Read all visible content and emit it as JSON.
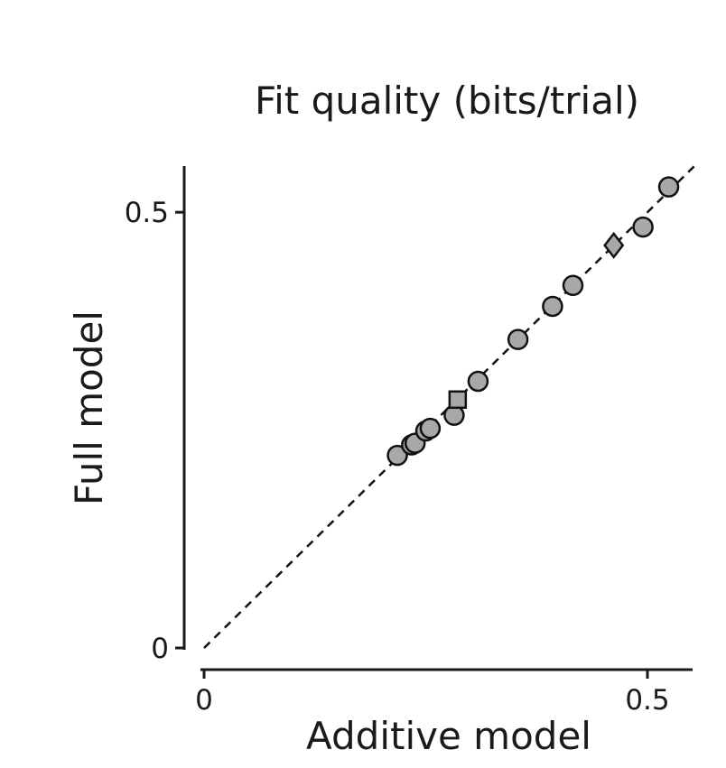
{
  "chart_data": {
    "type": "scatter",
    "title": "Fit quality (bits/trial)",
    "xlabel": "Additive model",
    "ylabel": "Full model",
    "xlim": [
      0,
      0.555
    ],
    "ylim": [
      0,
      0.553
    ],
    "x_ticks": [
      0,
      0.5
    ],
    "y_ticks": [
      0,
      0.5
    ],
    "x_tick_labels": [
      "0",
      "0.5"
    ],
    "y_tick_labels": [
      "0",
      "0.5"
    ],
    "grid": false,
    "reference_line": {
      "type": "identity",
      "style": "dashed",
      "label": ""
    },
    "marker_fill": "#a8a8a8",
    "marker_edge": "#111111",
    "series": [
      {
        "name": "circles",
        "marker": "circle",
        "points": [
          {
            "x": 0.218,
            "y": 0.221
          },
          {
            "x": 0.234,
            "y": 0.233
          },
          {
            "x": 0.238,
            "y": 0.235
          },
          {
            "x": 0.25,
            "y": 0.249
          },
          {
            "x": 0.255,
            "y": 0.252
          },
          {
            "x": 0.282,
            "y": 0.267
          },
          {
            "x": 0.309,
            "y": 0.306
          },
          {
            "x": 0.354,
            "y": 0.354
          },
          {
            "x": 0.393,
            "y": 0.392
          },
          {
            "x": 0.416,
            "y": 0.416
          },
          {
            "x": 0.495,
            "y": 0.483
          },
          {
            "x": 0.524,
            "y": 0.529
          }
        ]
      },
      {
        "name": "square",
        "marker": "square",
        "points": [
          {
            "x": 0.286,
            "y": 0.285
          }
        ]
      },
      {
        "name": "diamond",
        "marker": "diamond",
        "points": [
          {
            "x": 0.462,
            "y": 0.462
          }
        ]
      }
    ]
  }
}
